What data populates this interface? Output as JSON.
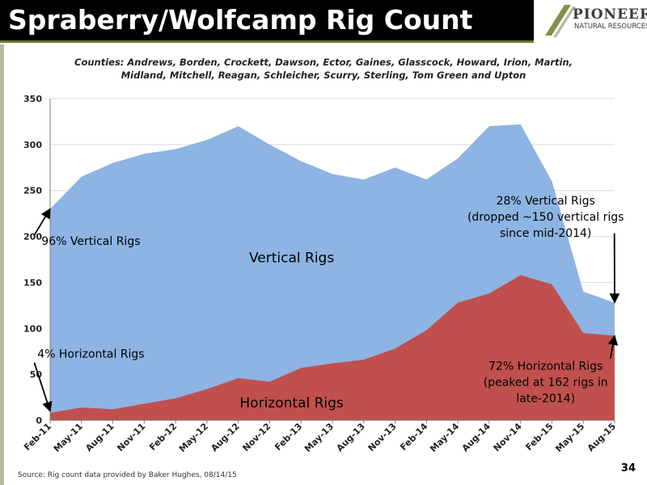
{
  "title": "Spraberry/Wolfcamp Rig Count",
  "logo": {
    "name": "PIONEER",
    "sub": "NATURAL RESOURCES"
  },
  "subtitle_lines": [
    "Counties: Andrews, Borden, Crockett, Dawson, Ector, Gaines, Glasscock, Howard, Irion, Martin,",
    "Midland, Mitchell, Reagan, Schleicher, Scurry, Sterling, Tom Green and Upton"
  ],
  "source": "Source: Rig count data provided by Baker Hughes, 08/14/15",
  "page_number": "34",
  "colors": {
    "total_area": "#8db4e2",
    "horizontal_area": "#c0504d",
    "title_bg": "#000000",
    "accent": "#6b7d2c"
  },
  "chart_data": {
    "type": "area",
    "x_tick_labels": [
      "Feb-11",
      "May-11",
      "Aug-11",
      "Nov-11",
      "Feb-12",
      "May-12",
      "Aug-12",
      "Nov-12",
      "Feb-13",
      "May-13",
      "Aug-13",
      "Nov-13",
      "Feb-14",
      "May-14",
      "Aug-14",
      "Nov-14",
      "Feb-15",
      "May-15",
      "Aug-15"
    ],
    "ylim": [
      0,
      350
    ],
    "y_ticks": [
      0,
      50,
      100,
      150,
      200,
      250,
      300,
      350
    ],
    "grid": "horizontal",
    "x": [
      "Feb-11",
      "May-11",
      "Aug-11",
      "Nov-11",
      "Feb-12",
      "May-12",
      "Aug-12",
      "Nov-12",
      "Feb-13",
      "May-13",
      "Aug-13",
      "Nov-13",
      "Feb-14",
      "May-14",
      "Aug-14",
      "Nov-14",
      "Feb-15",
      "May-15",
      "Aug-15"
    ],
    "series": [
      {
        "name": "Vertical Rigs",
        "values": [
          230,
          265,
          280,
          290,
          295,
          305,
          320,
          300,
          282,
          268,
          262,
          275,
          262,
          285,
          320,
          322,
          260,
          140,
          128
        ]
      },
      {
        "name": "Horizontal Rigs",
        "values": [
          8,
          14,
          12,
          18,
          24,
          34,
          46,
          42,
          57,
          62,
          66,
          78,
          98,
          128,
          138,
          158,
          148,
          95,
          92
        ]
      }
    ],
    "area_labels": {
      "vertical": "Vertical Rigs",
      "horizontal": "Horizontal Rigs"
    },
    "annotations": [
      {
        "lines": [
          "96% Vertical Rigs"
        ],
        "text_x": 1.3,
        "text_y": 191,
        "target_x": 0,
        "target_y": 230
      },
      {
        "lines": [
          "4% Horizontal Rigs"
        ],
        "text_x": 1.3,
        "text_y": 68,
        "target_x": 0,
        "target_y": 10
      },
      {
        "lines": [
          "28% Vertical Rigs",
          "(dropped ~150 vertical rigs",
          "since mid-2014)"
        ],
        "text_x": 15.8,
        "text_y": 235,
        "target_x": 18,
        "target_y": 128
      },
      {
        "lines": [
          "72% Horizontal Rigs",
          "(peaked at 162 rigs in",
          "late-2014)"
        ],
        "text_x": 15.8,
        "text_y": 55,
        "target_x": 18,
        "target_y": 92
      }
    ]
  }
}
